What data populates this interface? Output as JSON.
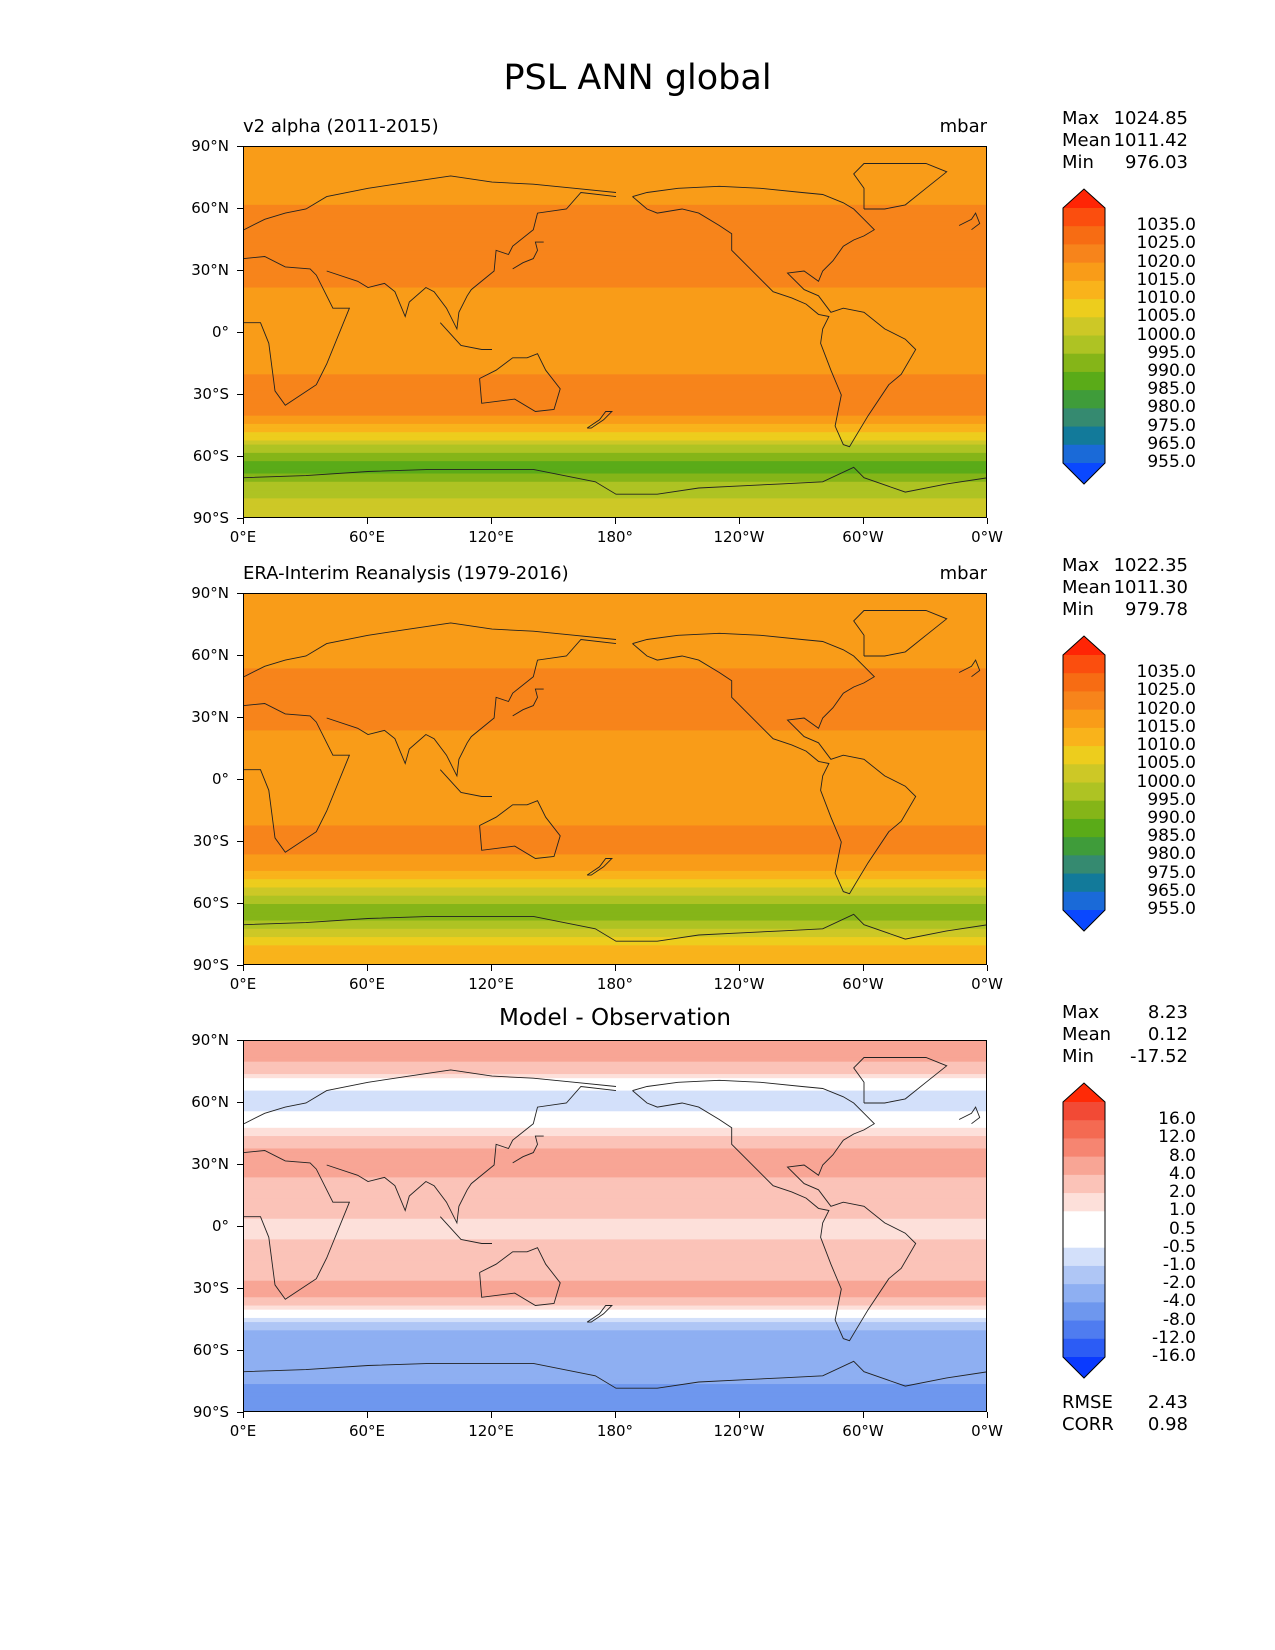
{
  "figure_title": "PSL ANN global",
  "x_ticks": [
    "0°E",
    "60°E",
    "120°E",
    "180°",
    "120°W",
    "60°W",
    "0°W"
  ],
  "y_ticks": [
    "90°N",
    "60°N",
    "30°N",
    "0°",
    "30°S",
    "60°S",
    "90°S"
  ],
  "colors": {
    "full_field": [
      "#0a48ff",
      "#1a6ad8",
      "#127a9a",
      "#358a70",
      "#3f9c3a",
      "#5aab18",
      "#85b518",
      "#aec323",
      "#cdc826",
      "#edcd1d",
      "#f9b31b",
      "#f99c18",
      "#f7841b",
      "#f76c13",
      "#fb4e0e",
      "#ff2505"
    ],
    "difference": [
      "#0a3aff",
      "#2c5cf5",
      "#4f7cf0",
      "#6e97ee",
      "#8eaff2",
      "#afc6f5",
      "#d3e0fa",
      "#ffffff",
      "#ffffff",
      "#fde0da",
      "#fbc3b8",
      "#f8a595",
      "#f68571",
      "#f46a52",
      "#f24a35",
      "#ff2a06"
    ]
  },
  "chart_data": [
    {
      "type": "heatmap",
      "left_title": "v2 alpha (2011-2015)",
      "right_title": "mbar",
      "center_title": "",
      "stats": {
        "Max": "1024.85",
        "Mean": "1011.42",
        "Min": "976.03"
      },
      "footer_stats": null,
      "colorbar_labels": [
        "1035.0",
        "1025.0",
        "1020.0",
        "1015.0",
        "1010.0",
        "1005.0",
        "1000.0",
        "995.0",
        "990.0",
        "985.0",
        "980.0",
        "975.0",
        "965.0",
        "955.0"
      ],
      "palette": "full_field",
      "zonal_profile": [
        {
          "lat": 90,
          "value": 1015
        },
        {
          "lat": 70,
          "value": 1014
        },
        {
          "lat": 45,
          "value": 1017
        },
        {
          "lat": 30,
          "value": 1018
        },
        {
          "lat": 15,
          "value": 1012
        },
        {
          "lat": 0,
          "value": 1010
        },
        {
          "lat": -15,
          "value": 1013
        },
        {
          "lat": -30,
          "value": 1019
        },
        {
          "lat": -40,
          "value": 1015
        },
        {
          "lat": -50,
          "value": 1002
        },
        {
          "lat": -60,
          "value": 987
        },
        {
          "lat": -65,
          "value": 980
        },
        {
          "lat": -72,
          "value": 990
        },
        {
          "lat": -80,
          "value": 995
        },
        {
          "lat": -90,
          "value": 1000
        }
      ],
      "xlim": [
        0,
        360
      ],
      "ylim": [
        -90,
        90
      ]
    },
    {
      "type": "heatmap",
      "left_title": "ERA-Interim Reanalysis (1979-2016)",
      "right_title": "mbar",
      "center_title": "",
      "stats": {
        "Max": "1022.35",
        "Mean": "1011.30",
        "Min": "979.78"
      },
      "footer_stats": null,
      "colorbar_labels": [
        "1035.0",
        "1025.0",
        "1020.0",
        "1015.0",
        "1010.0",
        "1005.0",
        "1000.0",
        "995.0",
        "990.0",
        "985.0",
        "980.0",
        "975.0",
        "965.0",
        "955.0"
      ],
      "palette": "full_field",
      "zonal_profile": [
        {
          "lat": 90,
          "value": 1014
        },
        {
          "lat": 70,
          "value": 1013
        },
        {
          "lat": 45,
          "value": 1016
        },
        {
          "lat": 30,
          "value": 1017
        },
        {
          "lat": 15,
          "value": 1012
        },
        {
          "lat": 0,
          "value": 1010
        },
        {
          "lat": -15,
          "value": 1013
        },
        {
          "lat": -30,
          "value": 1017
        },
        {
          "lat": -40,
          "value": 1014
        },
        {
          "lat": -50,
          "value": 1003
        },
        {
          "lat": -60,
          "value": 989
        },
        {
          "lat": -65,
          "value": 985
        },
        {
          "lat": -72,
          "value": 995
        },
        {
          "lat": -80,
          "value": 1006
        },
        {
          "lat": -90,
          "value": 1010
        }
      ],
      "xlim": [
        0,
        360
      ],
      "ylim": [
        -90,
        90
      ]
    },
    {
      "type": "heatmap",
      "left_title": "",
      "right_title": "",
      "center_title": "Model - Observation",
      "stats": {
        "Max": "8.23",
        "Mean": "0.12",
        "Min": "-17.52"
      },
      "footer_stats": {
        "RMSE": "2.43",
        "CORR": "0.98"
      },
      "colorbar_labels": [
        "16.0",
        "12.0",
        "8.0",
        "4.0",
        "2.0",
        "1.0",
        "0.5",
        "-0.5",
        "-1.0",
        "-2.0",
        "-4.0",
        "-8.0",
        "-12.0",
        "-16.0"
      ],
      "palette": "difference",
      "zonal_profile": [
        {
          "lat": 90,
          "value": 3
        },
        {
          "lat": 75,
          "value": 1.5
        },
        {
          "lat": 62,
          "value": -2
        },
        {
          "lat": 50,
          "value": 0.2
        },
        {
          "lat": 35,
          "value": 2.5
        },
        {
          "lat": 15,
          "value": 1.5
        },
        {
          "lat": 0,
          "value": 0.8
        },
        {
          "lat": -20,
          "value": 1.5
        },
        {
          "lat": -32,
          "value": 2.5
        },
        {
          "lat": -42,
          "value": 0.2
        },
        {
          "lat": -50,
          "value": -4
        },
        {
          "lat": -62,
          "value": -6
        },
        {
          "lat": -75,
          "value": -8
        },
        {
          "lat": -85,
          "value": -10
        },
        {
          "lat": -90,
          "value": -10
        }
      ],
      "xlim": [
        0,
        360
      ],
      "ylim": [
        -90,
        90
      ]
    }
  ]
}
